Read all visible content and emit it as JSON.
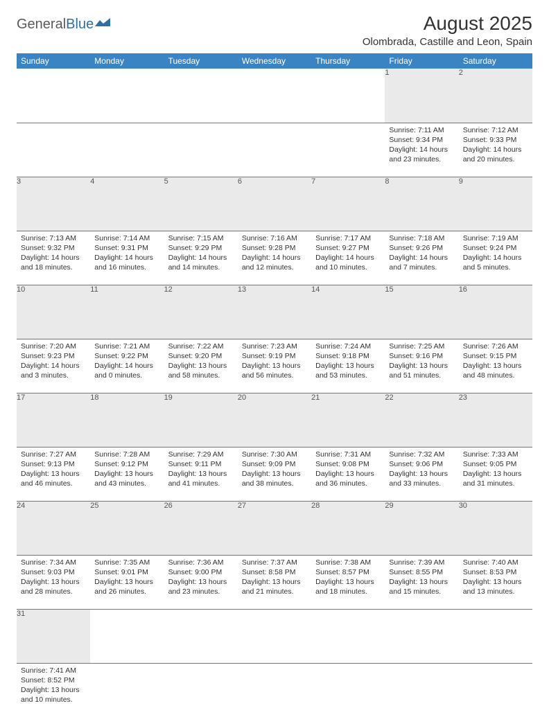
{
  "brand": {
    "general": "General",
    "blue": "Blue"
  },
  "title": "August 2025",
  "location": "Olombrada, Castille and Leon, Spain",
  "colors": {
    "header_bg": "#3b84c4",
    "header_fg": "#ffffff",
    "daynum_bg": "#eaeaea",
    "rule": "#3b84c4",
    "brand_blue": "#2f6fa7"
  },
  "weekdays": [
    "Sunday",
    "Monday",
    "Tuesday",
    "Wednesday",
    "Thursday",
    "Friday",
    "Saturday"
  ],
  "weeks": [
    [
      null,
      null,
      null,
      null,
      null,
      {
        "n": "1",
        "sr": "Sunrise: 7:11 AM",
        "ss": "Sunset: 9:34 PM",
        "dl1": "Daylight: 14 hours",
        "dl2": "and 23 minutes."
      },
      {
        "n": "2",
        "sr": "Sunrise: 7:12 AM",
        "ss": "Sunset: 9:33 PM",
        "dl1": "Daylight: 14 hours",
        "dl2": "and 20 minutes."
      }
    ],
    [
      {
        "n": "3",
        "sr": "Sunrise: 7:13 AM",
        "ss": "Sunset: 9:32 PM",
        "dl1": "Daylight: 14 hours",
        "dl2": "and 18 minutes."
      },
      {
        "n": "4",
        "sr": "Sunrise: 7:14 AM",
        "ss": "Sunset: 9:31 PM",
        "dl1": "Daylight: 14 hours",
        "dl2": "and 16 minutes."
      },
      {
        "n": "5",
        "sr": "Sunrise: 7:15 AM",
        "ss": "Sunset: 9:29 PM",
        "dl1": "Daylight: 14 hours",
        "dl2": "and 14 minutes."
      },
      {
        "n": "6",
        "sr": "Sunrise: 7:16 AM",
        "ss": "Sunset: 9:28 PM",
        "dl1": "Daylight: 14 hours",
        "dl2": "and 12 minutes."
      },
      {
        "n": "7",
        "sr": "Sunrise: 7:17 AM",
        "ss": "Sunset: 9:27 PM",
        "dl1": "Daylight: 14 hours",
        "dl2": "and 10 minutes."
      },
      {
        "n": "8",
        "sr": "Sunrise: 7:18 AM",
        "ss": "Sunset: 9:26 PM",
        "dl1": "Daylight: 14 hours",
        "dl2": "and 7 minutes."
      },
      {
        "n": "9",
        "sr": "Sunrise: 7:19 AM",
        "ss": "Sunset: 9:24 PM",
        "dl1": "Daylight: 14 hours",
        "dl2": "and 5 minutes."
      }
    ],
    [
      {
        "n": "10",
        "sr": "Sunrise: 7:20 AM",
        "ss": "Sunset: 9:23 PM",
        "dl1": "Daylight: 14 hours",
        "dl2": "and 3 minutes."
      },
      {
        "n": "11",
        "sr": "Sunrise: 7:21 AM",
        "ss": "Sunset: 9:22 PM",
        "dl1": "Daylight: 14 hours",
        "dl2": "and 0 minutes."
      },
      {
        "n": "12",
        "sr": "Sunrise: 7:22 AM",
        "ss": "Sunset: 9:20 PM",
        "dl1": "Daylight: 13 hours",
        "dl2": "and 58 minutes."
      },
      {
        "n": "13",
        "sr": "Sunrise: 7:23 AM",
        "ss": "Sunset: 9:19 PM",
        "dl1": "Daylight: 13 hours",
        "dl2": "and 56 minutes."
      },
      {
        "n": "14",
        "sr": "Sunrise: 7:24 AM",
        "ss": "Sunset: 9:18 PM",
        "dl1": "Daylight: 13 hours",
        "dl2": "and 53 minutes."
      },
      {
        "n": "15",
        "sr": "Sunrise: 7:25 AM",
        "ss": "Sunset: 9:16 PM",
        "dl1": "Daylight: 13 hours",
        "dl2": "and 51 minutes."
      },
      {
        "n": "16",
        "sr": "Sunrise: 7:26 AM",
        "ss": "Sunset: 9:15 PM",
        "dl1": "Daylight: 13 hours",
        "dl2": "and 48 minutes."
      }
    ],
    [
      {
        "n": "17",
        "sr": "Sunrise: 7:27 AM",
        "ss": "Sunset: 9:13 PM",
        "dl1": "Daylight: 13 hours",
        "dl2": "and 46 minutes."
      },
      {
        "n": "18",
        "sr": "Sunrise: 7:28 AM",
        "ss": "Sunset: 9:12 PM",
        "dl1": "Daylight: 13 hours",
        "dl2": "and 43 minutes."
      },
      {
        "n": "19",
        "sr": "Sunrise: 7:29 AM",
        "ss": "Sunset: 9:11 PM",
        "dl1": "Daylight: 13 hours",
        "dl2": "and 41 minutes."
      },
      {
        "n": "20",
        "sr": "Sunrise: 7:30 AM",
        "ss": "Sunset: 9:09 PM",
        "dl1": "Daylight: 13 hours",
        "dl2": "and 38 minutes."
      },
      {
        "n": "21",
        "sr": "Sunrise: 7:31 AM",
        "ss": "Sunset: 9:08 PM",
        "dl1": "Daylight: 13 hours",
        "dl2": "and 36 minutes."
      },
      {
        "n": "22",
        "sr": "Sunrise: 7:32 AM",
        "ss": "Sunset: 9:06 PM",
        "dl1": "Daylight: 13 hours",
        "dl2": "and 33 minutes."
      },
      {
        "n": "23",
        "sr": "Sunrise: 7:33 AM",
        "ss": "Sunset: 9:05 PM",
        "dl1": "Daylight: 13 hours",
        "dl2": "and 31 minutes."
      }
    ],
    [
      {
        "n": "24",
        "sr": "Sunrise: 7:34 AM",
        "ss": "Sunset: 9:03 PM",
        "dl1": "Daylight: 13 hours",
        "dl2": "and 28 minutes."
      },
      {
        "n": "25",
        "sr": "Sunrise: 7:35 AM",
        "ss": "Sunset: 9:01 PM",
        "dl1": "Daylight: 13 hours",
        "dl2": "and 26 minutes."
      },
      {
        "n": "26",
        "sr": "Sunrise: 7:36 AM",
        "ss": "Sunset: 9:00 PM",
        "dl1": "Daylight: 13 hours",
        "dl2": "and 23 minutes."
      },
      {
        "n": "27",
        "sr": "Sunrise: 7:37 AM",
        "ss": "Sunset: 8:58 PM",
        "dl1": "Daylight: 13 hours",
        "dl2": "and 21 minutes."
      },
      {
        "n": "28",
        "sr": "Sunrise: 7:38 AM",
        "ss": "Sunset: 8:57 PM",
        "dl1": "Daylight: 13 hours",
        "dl2": "and 18 minutes."
      },
      {
        "n": "29",
        "sr": "Sunrise: 7:39 AM",
        "ss": "Sunset: 8:55 PM",
        "dl1": "Daylight: 13 hours",
        "dl2": "and 15 minutes."
      },
      {
        "n": "30",
        "sr": "Sunrise: 7:40 AM",
        "ss": "Sunset: 8:53 PM",
        "dl1": "Daylight: 13 hours",
        "dl2": "and 13 minutes."
      }
    ],
    [
      {
        "n": "31",
        "sr": "Sunrise: 7:41 AM",
        "ss": "Sunset: 8:52 PM",
        "dl1": "Daylight: 13 hours",
        "dl2": "and 10 minutes."
      },
      null,
      null,
      null,
      null,
      null,
      null
    ]
  ]
}
